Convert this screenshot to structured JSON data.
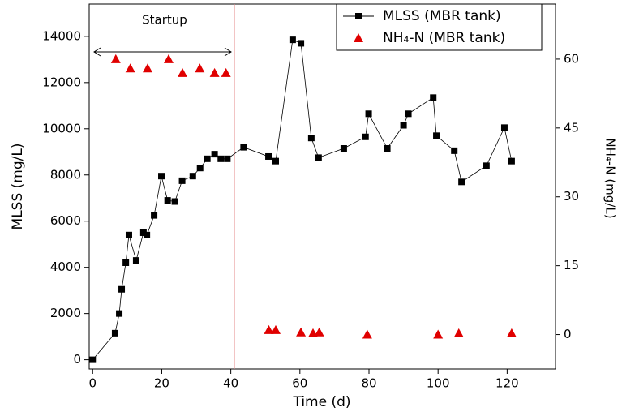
{
  "chart_data": {
    "type": "scatter",
    "xlabel": "Time (d)",
    "ylabel": "MLSS (mg/L)",
    "y2label": "NH₄-N (mg/L)",
    "annotation": "Startup",
    "xlim": [
      -1,
      134
    ],
    "xticks": [
      0,
      20,
      40,
      60,
      80,
      100,
      120
    ],
    "ylim": [
      -400,
      15400
    ],
    "yticks": [
      0,
      2000,
      4000,
      6000,
      8000,
      10000,
      12000,
      14000
    ],
    "y2lim": [
      -7.5,
      72
    ],
    "y2ticks": [
      0,
      15,
      30,
      45,
      60
    ],
    "series": [
      {
        "name": "MLSS (MBR tank)",
        "color": "#000000",
        "marker": "square",
        "line": true,
        "x": [
          0,
          6.5,
          7.7,
          8.4,
          9.6,
          10.5,
          12.6,
          14.7,
          15.7,
          17.8,
          19.9,
          21.7,
          23.8,
          25.9,
          29,
          31.1,
          33.2,
          35.3,
          37.1,
          39,
          43.7,
          50.9,
          53,
          57.9,
          60.3,
          63.3,
          65.4,
          72.7,
          79,
          79.9,
          85.3,
          90,
          91.4,
          98.6,
          99.5,
          104.7,
          106.8,
          114,
          119.2,
          121.3
        ],
        "values": [
          0,
          1150,
          2000,
          3050,
          4200,
          5400,
          4300,
          5500,
          5400,
          6250,
          7950,
          6900,
          6850,
          7750,
          7950,
          8300,
          8700,
          8900,
          8700,
          8700,
          9200,
          8800,
          8600,
          13850,
          13700,
          9600,
          8750,
          9150,
          9650,
          10650,
          9150,
          10150,
          10650,
          11350,
          9700,
          9050,
          7700,
          8400,
          10050,
          8600
        ]
      },
      {
        "name": "NH₄-N (MBR tank)",
        "color": "#e00000",
        "marker": "triangle",
        "line": false,
        "axis": "y2",
        "x": [
          6.7,
          10.9,
          15.9,
          22,
          26,
          31,
          35.3,
          38.6,
          51,
          53,
          60.3,
          63.8,
          65.6,
          79.5,
          100,
          106,
          121.3
        ],
        "values": [
          60,
          58,
          58,
          60,
          57,
          58,
          57,
          57,
          1,
          1,
          0.5,
          0.3,
          0.5,
          0,
          0,
          0.3,
          0.3
        ]
      }
    ]
  }
}
